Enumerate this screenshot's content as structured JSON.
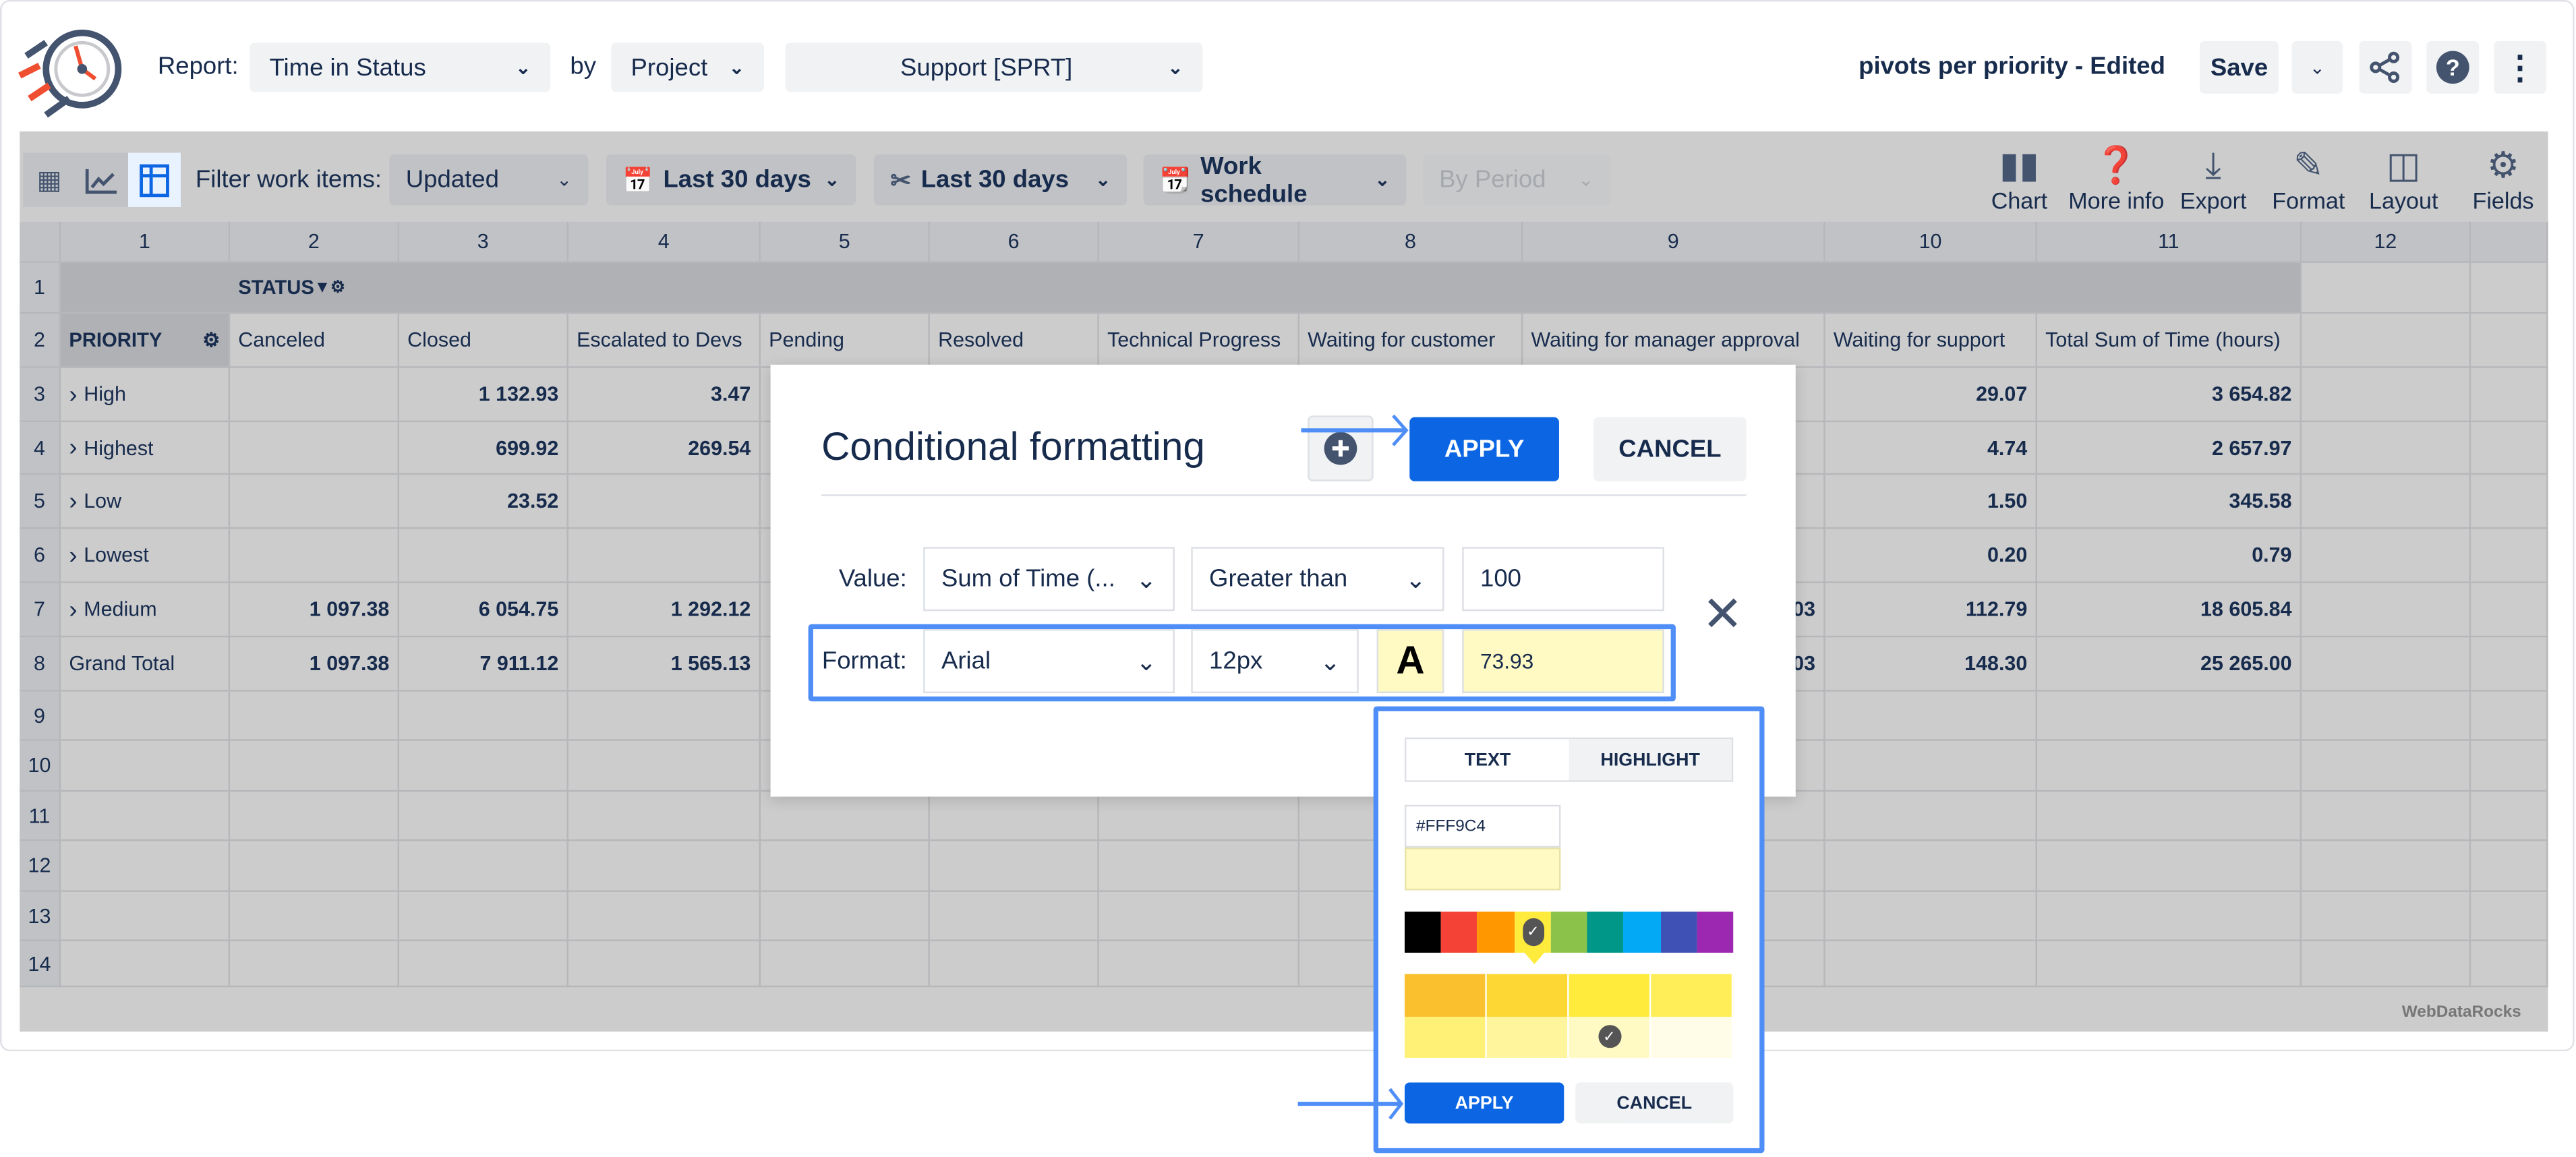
{
  "header": {
    "report_label": "Report:",
    "report_value": "Time in Status",
    "by_label": "by",
    "group_value": "Project",
    "project_value": "Support [SPRT]",
    "report_name": "pivots per priority - Edited",
    "save_label": "Save"
  },
  "toolbar": {
    "filter_label": "Filter work items:",
    "filter_value": "Updated",
    "date_range_1": "Last 30 days",
    "date_range_2": "Last 30 days",
    "schedule": "Work schedule",
    "period": "By Period",
    "tools": [
      "Chart",
      "More info",
      "Export",
      "Format",
      "Layout",
      "Fields"
    ]
  },
  "grid": {
    "column_numbers": [
      "1",
      "2",
      "3",
      "4",
      "5",
      "6",
      "7",
      "8",
      "9",
      "10",
      "11",
      "12"
    ],
    "row_numbers": [
      "1",
      "2",
      "3",
      "4",
      "5",
      "6",
      "7",
      "8",
      "9",
      "10",
      "11",
      "12",
      "13",
      "14"
    ],
    "status_label": "STATUS",
    "priority_label": "PRIORITY",
    "columns": [
      "Canceled",
      "Closed",
      "Escalated to Devs",
      "Pending",
      "Resolved",
      "Technical Progress",
      "Waiting for customer",
      "Waiting for manager approval",
      "Waiting for support",
      "Total Sum of Time (hours)"
    ],
    "rows": [
      {
        "label": "High",
        "expandable": true,
        "values": [
          "",
          "1 132.93",
          "3.47",
          "",
          "",
          "",
          "",
          "",
          "29.07",
          "3 654.82"
        ]
      },
      {
        "label": "Highest",
        "expandable": true,
        "values": [
          "",
          "699.92",
          "269.54",
          "",
          "",
          "",
          "",
          "",
          "4.74",
          "2 657.97"
        ]
      },
      {
        "label": "Low",
        "expandable": true,
        "values": [
          "",
          "23.52",
          "",
          "",
          "",
          "",
          "",
          "",
          "1.50",
          "345.58"
        ]
      },
      {
        "label": "Lowest",
        "expandable": true,
        "values": [
          "",
          "",
          "",
          "",
          "",
          "",
          "",
          "",
          "0.20",
          "0.79"
        ]
      },
      {
        "label": "Medium",
        "expandable": true,
        "values": [
          "1 097.38",
          "6 054.75",
          "1 292.12",
          "",
          "",
          "",
          "",
          "03",
          "112.79",
          "18 605.84"
        ]
      },
      {
        "label": "Grand Total",
        "expandable": false,
        "values": [
          "1 097.38",
          "7 911.12",
          "1 565.13",
          "",
          "",
          "",
          "",
          "03",
          "148.30",
          "25 265.00"
        ]
      }
    ],
    "watermark": "WebDataRocks"
  },
  "dialog": {
    "title": "Conditional formatting",
    "apply_label": "APPLY",
    "cancel_label": "CANCEL",
    "value_label": "Value:",
    "measure": "Sum of Time (...",
    "condition": "Greater than",
    "threshold": "100",
    "format_label": "Format:",
    "font": "Arial",
    "font_size": "12px",
    "font_color_glyph": "A",
    "sample": "73.93"
  },
  "color_picker": {
    "tab_text": "TEXT",
    "tab_highlight": "HIGHLIGHT",
    "active_tab": "TEXT",
    "hex": "#FFF9C4",
    "palette": [
      "#000000",
      "#f44336",
      "#ff9800",
      "#ffeb3b",
      "#8bc34a",
      "#009688",
      "#03a9f4",
      "#3f51b5",
      "#9c27b0"
    ],
    "selected_palette": "#ffeb3b",
    "shades": [
      "#fbc02d",
      "#fdd835",
      "#ffeb3b",
      "#ffee58",
      "#fff176",
      "#fff59d",
      "#fff9c4",
      "#fffde7"
    ],
    "selected_shade": "#fff9c4",
    "apply_label": "APPLY",
    "cancel_label": "CANCEL"
  },
  "colors": {
    "accent": "#0c66e4",
    "highlight_border": "#4f8ef7",
    "text": "#172b4d",
    "icon": "#44546f"
  }
}
